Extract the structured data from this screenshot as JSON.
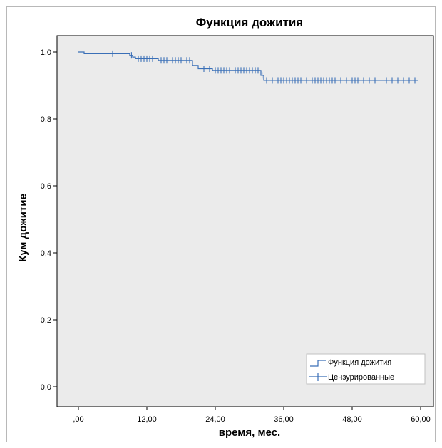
{
  "chart_data": {
    "type": "line",
    "title": "Функция дожития",
    "xlabel": "время, мес.",
    "ylabel": "Кум дожитие",
    "xlim": [
      0,
      60
    ],
    "ylim": [
      0,
      1.0
    ],
    "x_ticks": [
      0,
      12,
      24,
      36,
      48,
      60
    ],
    "x_tick_labels": [
      ",00",
      "12,00",
      "24,00",
      "36,00",
      "48,00",
      "60,00"
    ],
    "y_ticks": [
      0,
      0.2,
      0.4,
      0.6,
      0.8,
      1.0
    ],
    "y_tick_labels": [
      "0,0",
      "0,2",
      "0,4",
      "0,6",
      "0,8",
      "1,0"
    ],
    "grid": false,
    "legend_position": "bottom-right",
    "background_color": "#ebebeb",
    "series_color": "#3a6fb7",
    "series": [
      {
        "name": "Функция дожития",
        "style": "step",
        "points": [
          [
            0,
            1.0
          ],
          [
            1,
            1.0
          ],
          [
            1,
            0.995
          ],
          [
            9,
            0.995
          ],
          [
            9,
            0.99
          ],
          [
            9.5,
            0.99
          ],
          [
            9.5,
            0.985
          ],
          [
            10,
            0.985
          ],
          [
            10,
            0.98
          ],
          [
            14,
            0.98
          ],
          [
            14,
            0.975
          ],
          [
            20,
            0.975
          ],
          [
            20,
            0.96
          ],
          [
            21,
            0.96
          ],
          [
            21,
            0.95
          ],
          [
            23.5,
            0.95
          ],
          [
            23.5,
            0.945
          ],
          [
            32,
            0.945
          ],
          [
            32,
            0.93
          ],
          [
            32.5,
            0.93
          ],
          [
            32.5,
            0.915
          ],
          [
            59.5,
            0.915
          ]
        ]
      },
      {
        "name": "Цензурированные",
        "style": "censor-marks",
        "points": [
          [
            6,
            0.995
          ],
          [
            9.3,
            0.99
          ],
          [
            10.5,
            0.98
          ],
          [
            11,
            0.98
          ],
          [
            11.5,
            0.98
          ],
          [
            12,
            0.98
          ],
          [
            12.5,
            0.98
          ],
          [
            13,
            0.98
          ],
          [
            14.5,
            0.975
          ],
          [
            15,
            0.975
          ],
          [
            15.5,
            0.975
          ],
          [
            16.5,
            0.975
          ],
          [
            17,
            0.975
          ],
          [
            17.5,
            0.975
          ],
          [
            18,
            0.975
          ],
          [
            19,
            0.975
          ],
          [
            19.5,
            0.975
          ],
          [
            22,
            0.95
          ],
          [
            23,
            0.95
          ],
          [
            24,
            0.945
          ],
          [
            24.5,
            0.945
          ],
          [
            25,
            0.945
          ],
          [
            25.5,
            0.945
          ],
          [
            26,
            0.945
          ],
          [
            26.5,
            0.945
          ],
          [
            27.5,
            0.945
          ],
          [
            28,
            0.945
          ],
          [
            28.5,
            0.945
          ],
          [
            29,
            0.945
          ],
          [
            29.5,
            0.945
          ],
          [
            30,
            0.945
          ],
          [
            30.5,
            0.945
          ],
          [
            31,
            0.945
          ],
          [
            31.5,
            0.945
          ],
          [
            32.2,
            0.93
          ],
          [
            33,
            0.915
          ],
          [
            34,
            0.915
          ],
          [
            35,
            0.915
          ],
          [
            35.5,
            0.915
          ],
          [
            36,
            0.915
          ],
          [
            36.5,
            0.915
          ],
          [
            37,
            0.915
          ],
          [
            37.5,
            0.915
          ],
          [
            38,
            0.915
          ],
          [
            38.5,
            0.915
          ],
          [
            39,
            0.915
          ],
          [
            40,
            0.915
          ],
          [
            41,
            0.915
          ],
          [
            41.5,
            0.915
          ],
          [
            42,
            0.915
          ],
          [
            42.5,
            0.915
          ],
          [
            43,
            0.915
          ],
          [
            43.5,
            0.915
          ],
          [
            44,
            0.915
          ],
          [
            44.5,
            0.915
          ],
          [
            45,
            0.915
          ],
          [
            46,
            0.915
          ],
          [
            47,
            0.915
          ],
          [
            48,
            0.915
          ],
          [
            48.5,
            0.915
          ],
          [
            49,
            0.915
          ],
          [
            50,
            0.915
          ],
          [
            51,
            0.915
          ],
          [
            52,
            0.915
          ],
          [
            54,
            0.915
          ],
          [
            55,
            0.915
          ],
          [
            56,
            0.915
          ],
          [
            57,
            0.915
          ],
          [
            58,
            0.915
          ],
          [
            59,
            0.915
          ]
        ]
      }
    ]
  }
}
